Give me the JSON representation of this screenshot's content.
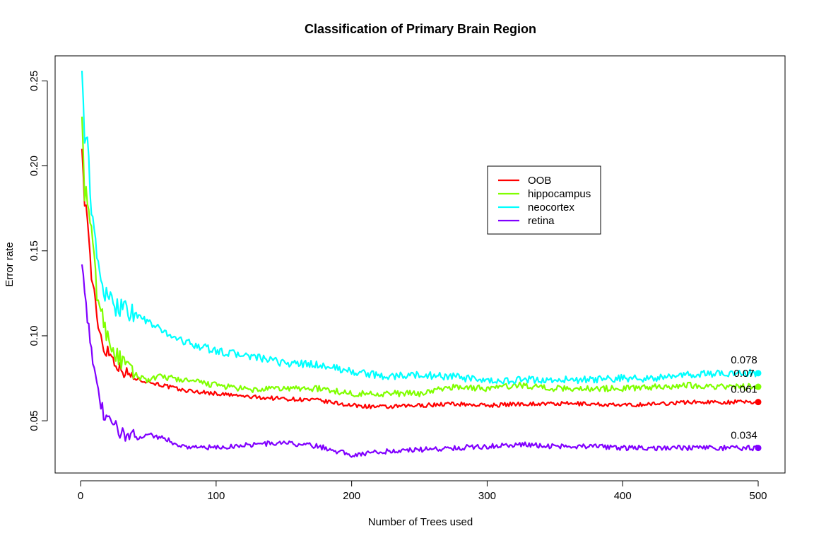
{
  "chart_data": {
    "type": "line",
    "title": "Classification of Primary Brain Region",
    "xlabel": "Number of Trees used",
    "ylabel": "Error rate",
    "xlim": [
      1,
      500
    ],
    "ylim": [
      0.028,
      0.256
    ],
    "xticks": [
      "0",
      "100",
      "200",
      "300",
      "400",
      "500"
    ],
    "yticks": [
      "0.05",
      "0.10",
      "0.15",
      "0.20",
      "0.25"
    ],
    "legend_position": "center-right",
    "grid": false,
    "series": [
      {
        "name": "OOB",
        "color": "#ff0000",
        "x": [
          1,
          3,
          5,
          8,
          10,
          12,
          15,
          18,
          20,
          25,
          30,
          40,
          50,
          60,
          75,
          100,
          125,
          150,
          175,
          200,
          225,
          250,
          275,
          300,
          325,
          350,
          375,
          400,
          425,
          450,
          475,
          500
        ],
        "values": [
          0.21,
          0.18,
          0.17,
          0.135,
          0.125,
          0.11,
          0.1,
          0.09,
          0.092,
          0.085,
          0.08,
          0.075,
          0.073,
          0.071,
          0.068,
          0.066,
          0.064,
          0.063,
          0.062,
          0.059,
          0.058,
          0.059,
          0.06,
          0.059,
          0.06,
          0.06,
          0.06,
          0.059,
          0.06,
          0.061,
          0.061,
          0.061
        ]
      },
      {
        "name": "hippocampus",
        "color": "#80ff00",
        "x": [
          1,
          3,
          5,
          8,
          10,
          12,
          15,
          18,
          20,
          25,
          30,
          40,
          50,
          60,
          75,
          100,
          125,
          150,
          175,
          200,
          225,
          250,
          275,
          300,
          325,
          350,
          375,
          400,
          425,
          450,
          475,
          500
        ],
        "values": [
          0.229,
          0.185,
          0.18,
          0.16,
          0.145,
          0.125,
          0.115,
          0.105,
          0.1,
          0.09,
          0.085,
          0.077,
          0.074,
          0.076,
          0.074,
          0.071,
          0.068,
          0.069,
          0.069,
          0.066,
          0.066,
          0.066,
          0.07,
          0.069,
          0.071,
          0.069,
          0.069,
          0.069,
          0.07,
          0.071,
          0.07,
          0.07
        ]
      },
      {
        "name": "neocortex",
        "color": "#00ffff",
        "x": [
          1,
          3,
          5,
          8,
          10,
          12,
          15,
          18,
          20,
          25,
          30,
          40,
          50,
          60,
          75,
          100,
          125,
          150,
          175,
          200,
          225,
          250,
          275,
          300,
          325,
          350,
          375,
          400,
          425,
          450,
          475,
          500
        ],
        "values": [
          0.256,
          0.22,
          0.22,
          0.17,
          0.16,
          0.145,
          0.135,
          0.125,
          0.12,
          0.118,
          0.118,
          0.113,
          0.108,
          0.103,
          0.097,
          0.091,
          0.088,
          0.084,
          0.083,
          0.079,
          0.076,
          0.077,
          0.076,
          0.073,
          0.074,
          0.074,
          0.074,
          0.075,
          0.075,
          0.077,
          0.078,
          0.078
        ]
      },
      {
        "name": "retina",
        "color": "#8000ff",
        "x": [
          1,
          3,
          5,
          8,
          10,
          12,
          15,
          18,
          20,
          25,
          30,
          40,
          50,
          60,
          75,
          100,
          125,
          150,
          175,
          200,
          225,
          250,
          275,
          300,
          325,
          350,
          375,
          400,
          425,
          450,
          475,
          500
        ],
        "values": [
          0.142,
          0.13,
          0.11,
          0.095,
          0.08,
          0.068,
          0.06,
          0.05,
          0.05,
          0.047,
          0.043,
          0.04,
          0.042,
          0.04,
          0.035,
          0.034,
          0.036,
          0.037,
          0.035,
          0.03,
          0.032,
          0.033,
          0.034,
          0.035,
          0.036,
          0.035,
          0.035,
          0.034,
          0.034,
          0.034,
          0.034,
          0.034
        ]
      }
    ],
    "end_labels": [
      {
        "series": "neocortex",
        "text": "0.078",
        "x": 500,
        "y": 0.078
      },
      {
        "series": "hippocampus",
        "text": "0.07",
        "x": 500,
        "y": 0.07
      },
      {
        "series": "OOB",
        "text": "0.061",
        "x": 500,
        "y": 0.061
      },
      {
        "series": "retina",
        "text": "0.034",
        "x": 500,
        "y": 0.034
      }
    ]
  }
}
